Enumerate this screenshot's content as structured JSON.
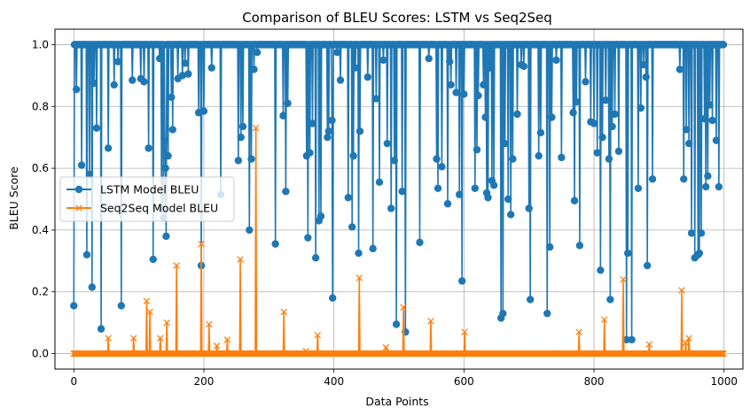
{
  "chart_data": {
    "type": "line",
    "title": "Comparison of BLEU Scores: LSTM vs Seq2Seq",
    "xlabel": "Data Points",
    "ylabel": "BLEU Score",
    "xlim": [
      -29,
      1029
    ],
    "ylim": [
      -0.05,
      1.05
    ],
    "xticks": [
      0,
      200,
      400,
      600,
      800,
      1000
    ],
    "xtick_labels": [
      "0",
      "200",
      "400",
      "600",
      "800",
      "1000"
    ],
    "yticks": [
      0.0,
      0.2,
      0.4,
      0.6,
      0.8,
      1.0
    ],
    "ytick_labels": [
      "0.0",
      "0.2",
      "0.4",
      "0.6",
      "0.8",
      "1.0"
    ],
    "grid": true,
    "legend_position": "center-left",
    "x_range": [
      0,
      999
    ],
    "series": [
      {
        "name": "LSTM Model BLEU",
        "color": "#1f77b4",
        "marker": "circle",
        "baseline": 1.0,
        "points": [
          [
            0,
            0.155
          ],
          [
            4,
            0.855
          ],
          [
            12,
            0.61
          ],
          [
            20,
            0.32
          ],
          [
            24,
            0.58
          ],
          [
            28,
            0.215
          ],
          [
            31,
            0.875
          ],
          [
            35,
            0.73
          ],
          [
            42,
            0.08
          ],
          [
            53,
            0.665
          ],
          [
            62,
            0.87
          ],
          [
            68,
            0.945
          ],
          [
            73,
            0.155
          ],
          [
            90,
            0.885
          ],
          [
            103,
            0.89
          ],
          [
            108,
            0.88
          ],
          [
            115,
            0.665
          ],
          [
            122,
            0.305
          ],
          [
            132,
            0.955
          ],
          [
            135,
            0.47
          ],
          [
            138,
            0.44
          ],
          [
            140,
            0.69
          ],
          [
            141,
            0.6
          ],
          [
            142,
            0.38
          ],
          [
            145,
            0.64
          ],
          [
            150,
            0.83
          ],
          [
            152,
            0.725
          ],
          [
            160,
            0.89
          ],
          [
            167,
            0.9
          ],
          [
            171,
            0.94
          ],
          [
            176,
            0.905
          ],
          [
            192,
            0.78
          ],
          [
            196,
            0.285
          ],
          [
            200,
            0.785
          ],
          [
            212,
            0.925
          ],
          [
            226,
            0.515
          ],
          [
            253,
            0.625
          ],
          [
            257,
            0.7
          ],
          [
            260,
            0.735
          ],
          [
            270,
            0.4
          ],
          [
            273,
            0.63
          ],
          [
            277,
            0.92
          ],
          [
            282,
            0.975
          ],
          [
            310,
            0.355
          ],
          [
            322,
            0.77
          ],
          [
            326,
            0.525
          ],
          [
            329,
            0.81
          ],
          [
            358,
            0.64
          ],
          [
            360,
            0.375
          ],
          [
            363,
            0.65
          ],
          [
            367,
            0.745
          ],
          [
            372,
            0.31
          ],
          [
            377,
            0.43
          ],
          [
            380,
            0.445
          ],
          [
            390,
            0.7
          ],
          [
            392,
            0.72
          ],
          [
            397,
            0.755
          ],
          [
            398,
            0.18
          ],
          [
            405,
            0.975
          ],
          [
            410,
            0.885
          ],
          [
            422,
            0.505
          ],
          [
            428,
            0.41
          ],
          [
            430,
            0.64
          ],
          [
            433,
            0.925
          ],
          [
            438,
            0.325
          ],
          [
            440,
            0.72
          ],
          [
            452,
            0.895
          ],
          [
            460,
            0.34
          ],
          [
            465,
            0.825
          ],
          [
            470,
            0.555
          ],
          [
            476,
            0.95
          ],
          [
            482,
            0.68
          ],
          [
            488,
            0.47
          ],
          [
            493,
            0.625
          ],
          [
            496,
            0.095
          ],
          [
            505,
            0.525
          ],
          [
            510,
            0.07
          ],
          [
            532,
            0.36
          ],
          [
            546,
            0.955
          ],
          [
            558,
            0.63
          ],
          [
            560,
            0.535
          ],
          [
            566,
            0.605
          ],
          [
            575,
            0.485
          ],
          [
            578,
            0.945
          ],
          [
            580,
            0.87
          ],
          [
            588,
            0.845
          ],
          [
            593,
            0.515
          ],
          [
            597,
            0.235
          ],
          [
            600,
            0.84
          ],
          [
            617,
            0.535
          ],
          [
            620,
            0.66
          ],
          [
            622,
            0.835
          ],
          [
            630,
            0.87
          ],
          [
            633,
            0.765
          ],
          [
            635,
            0.52
          ],
          [
            637,
            0.505
          ],
          [
            640,
            0.925
          ],
          [
            643,
            0.56
          ],
          [
            646,
            0.545
          ],
          [
            657,
            0.115
          ],
          [
            660,
            0.13
          ],
          [
            663,
            0.68
          ],
          [
            668,
            0.5
          ],
          [
            672,
            0.45
          ],
          [
            675,
            0.63
          ],
          [
            682,
            0.775
          ],
          [
            688,
            0.935
          ],
          [
            692,
            0.93
          ],
          [
            700,
            0.47
          ],
          [
            702,
            0.175
          ],
          [
            715,
            0.64
          ],
          [
            718,
            0.715
          ],
          [
            728,
            0.13
          ],
          [
            732,
            0.345
          ],
          [
            735,
            0.765
          ],
          [
            742,
            0.95
          ],
          [
            750,
            0.635
          ],
          [
            768,
            0.78
          ],
          [
            770,
            0.495
          ],
          [
            773,
            0.815
          ],
          [
            778,
            0.35
          ],
          [
            787,
            0.88
          ],
          [
            795,
            0.75
          ],
          [
            800,
            0.745
          ],
          [
            805,
            0.65
          ],
          [
            810,
            0.27
          ],
          [
            813,
            0.7
          ],
          [
            818,
            0.82
          ],
          [
            823,
            0.63
          ],
          [
            825,
            0.175
          ],
          [
            828,
            0.735
          ],
          [
            832,
            0.775
          ],
          [
            838,
            0.655
          ],
          [
            850,
            0.045
          ],
          [
            852,
            0.325
          ],
          [
            858,
            0.045
          ],
          [
            868,
            0.535
          ],
          [
            872,
            0.795
          ],
          [
            876,
            0.935
          ],
          [
            880,
            0.895
          ],
          [
            882,
            0.285
          ],
          [
            890,
            0.565
          ],
          [
            932,
            0.92
          ],
          [
            938,
            0.565
          ],
          [
            942,
            0.725
          ],
          [
            946,
            0.68
          ],
          [
            950,
            0.39
          ],
          [
            955,
            0.31
          ],
          [
            960,
            0.32
          ],
          [
            962,
            0.325
          ],
          [
            965,
            0.39
          ],
          [
            970,
            0.76
          ],
          [
            972,
            0.54
          ],
          [
            975,
            0.575
          ],
          [
            978,
            0.805
          ],
          [
            982,
            0.755
          ],
          [
            988,
            0.69
          ],
          [
            992,
            0.54
          ]
        ]
      },
      {
        "name": "Seq2Seq Model BLEU",
        "color": "#ff7f0e",
        "marker": "x",
        "baseline": 0.0,
        "points": [
          [
            53,
            0.05
          ],
          [
            92,
            0.05
          ],
          [
            112,
            0.17
          ],
          [
            117,
            0.135
          ],
          [
            133,
            0.05
          ],
          [
            143,
            0.1
          ],
          [
            158,
            0.285
          ],
          [
            196,
            0.355
          ],
          [
            208,
            0.095
          ],
          [
            220,
            0.025
          ],
          [
            236,
            0.045
          ],
          [
            256,
            0.305
          ],
          [
            280,
            0.73
          ],
          [
            323,
            0.135
          ],
          [
            357,
            0.008
          ],
          [
            375,
            0.06
          ],
          [
            439,
            0.245
          ],
          [
            480,
            0.02
          ],
          [
            507,
            0.15
          ],
          [
            549,
            0.105
          ],
          [
            601,
            0.07
          ],
          [
            777,
            0.07
          ],
          [
            816,
            0.11
          ],
          [
            845,
            0.24
          ],
          [
            885,
            0.03
          ],
          [
            935,
            0.205
          ],
          [
            941,
            0.035
          ],
          [
            946,
            0.05
          ]
        ]
      }
    ]
  }
}
